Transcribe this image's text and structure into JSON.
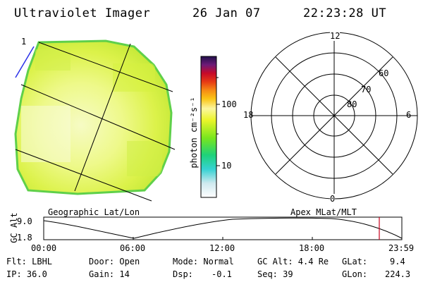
{
  "header": {
    "title": "Ultraviolet Imager",
    "date": "26 Jan 07",
    "time": "22:23:28 UT"
  },
  "left_panel": {
    "corner_mark": "1",
    "caption": "Geographic Lat/Lon"
  },
  "colorbar": {
    "unit_label": "photon cm⁻²s⁻¹",
    "ticks": [
      "100",
      "10"
    ]
  },
  "polar_plot": {
    "caption": "Apex MLat/MLT",
    "mlt_labels": {
      "top": "12",
      "left": "18",
      "right": "6",
      "bottom": "0"
    },
    "mlat_labels": [
      "60",
      "70",
      "80"
    ]
  },
  "orbit_plot": {
    "ylabel": "GC Alt",
    "ytick_top": "9.0",
    "ytick_bottom": "1.8",
    "xticks": [
      "00:00",
      "06:00",
      "12:00",
      "18:00",
      "23:59"
    ],
    "current_time_fraction": 0.937,
    "marker_color": "#c8001e"
  },
  "info": {
    "row1": {
      "filter": "Flt: LBHL",
      "door": "Door: Open",
      "mode": "Mode: Normal",
      "gc_alt": "GC Alt: 4.4 Re",
      "glat_label": "GLat:",
      "glat_value": "9.4"
    },
    "row2": {
      "ip": "IP: 36.0",
      "gain": "Gain: 14",
      "dsp_label": "Dsp:",
      "dsp_value": "-0.1",
      "seq": "Seq: 39",
      "glon_label": "GLon:",
      "glon_value": "224.3"
    }
  }
}
